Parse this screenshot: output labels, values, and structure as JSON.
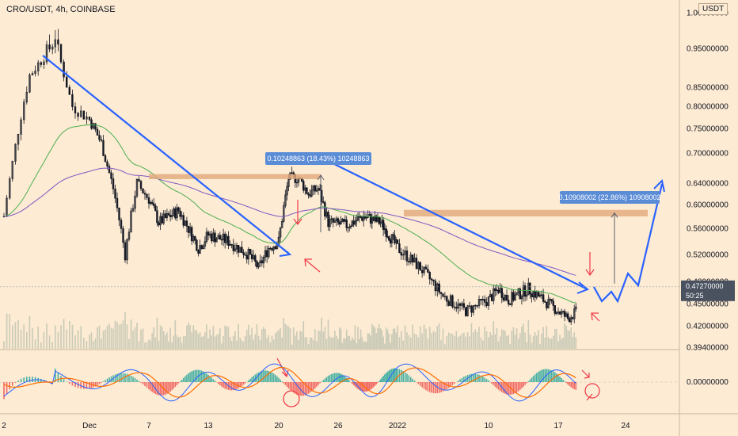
{
  "header": {
    "symbol": "CRO/USDT, 4h, COINBASE",
    "currency": "USDT"
  },
  "chart_data": {
    "type": "candlestick",
    "y_ticks": [
      {
        "value": 1.0,
        "label": "1.00000000"
      },
      {
        "value": 0.95,
        "label": "0.95000000"
      },
      {
        "value": 0.85,
        "label": "0.85000000"
      },
      {
        "value": 0.8,
        "label": "0.80000000"
      },
      {
        "value": 0.75,
        "label": "0.75000000"
      },
      {
        "value": 0.7,
        "label": "0.70000000"
      },
      {
        "value": 0.64,
        "label": "0.64000000"
      },
      {
        "value": 0.6,
        "label": "0.60000000"
      },
      {
        "value": 0.56,
        "label": "0.56000000"
      },
      {
        "value": 0.52,
        "label": "0.52000000"
      },
      {
        "value": 0.48,
        "label": "0.48000000"
      },
      {
        "value": 0.45,
        "label": "0.45000000"
      },
      {
        "value": 0.42,
        "label": "0.42000000"
      },
      {
        "value": 0.394,
        "label": "0.39400000"
      }
    ],
    "x_ticks": [
      "2",
      "Dec",
      "7",
      "13",
      "20",
      "26",
      "2022",
      "10",
      "17",
      "24"
    ],
    "current_price": {
      "value": 0.4727,
      "label": "0.47270000",
      "countdown": "50:25"
    },
    "measurements": [
      {
        "label": "0.10248863 (18.43%) 10248863",
        "from": 0.554,
        "to": 0.656
      },
      {
        "label": "0.10908002 (22.86%) 10908002",
        "from": 0.477,
        "to": 0.586
      }
    ],
    "resistance_zones": [
      {
        "low": 0.648,
        "high": 0.658
      },
      {
        "low": 0.58,
        "high": 0.591
      }
    ],
    "macd_zero_label": "0.00000000",
    "colors": {
      "background": "#fdebd3",
      "candle": "#131722",
      "ema_fast": "#4caf50",
      "ema_slow": "#7e57c2",
      "trendline": "#2962ff",
      "zone": "#e2a97c",
      "arrow": "#f23645",
      "volume": "#b7bfae",
      "macd_line": "#2962ff",
      "signal_line": "#ff6d00",
      "hist_pos": "#26a69a",
      "hist_neg": "#ef5350",
      "label_bg": "#5b8cd6",
      "price_tag": "#4a5260"
    }
  }
}
